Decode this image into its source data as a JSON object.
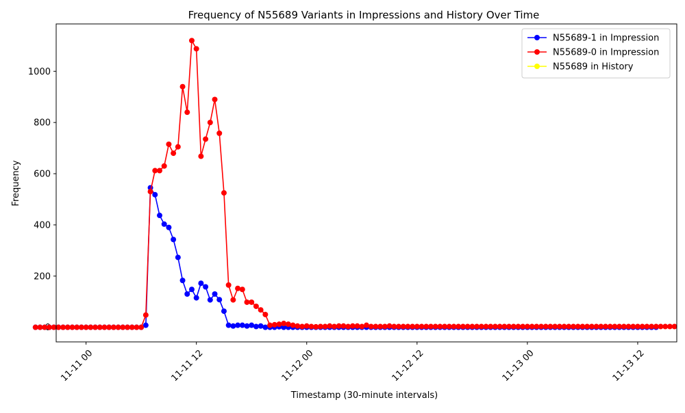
{
  "chart_data": {
    "type": "line",
    "title": "Frequency of N55689 Variants in Impressions and History Over Time",
    "xlabel": "Timestamp (30-minute intervals)",
    "ylabel": "Frequency",
    "x_tick_labels": [
      "11-11 00",
      "11-11 12",
      "11-12 00",
      "11-12 12",
      "11-13 00",
      "11-13 12"
    ],
    "x_tick_hours": [
      0,
      12,
      24,
      36,
      48,
      60
    ],
    "y_ticks": [
      0,
      200,
      400,
      600,
      800,
      1000
    ],
    "xlim_hours": [
      -3.25,
      64.25
    ],
    "ylim": [
      -57,
      1185
    ],
    "grid": false,
    "legend_position": "top-right",
    "x_start_hour": -5.5,
    "x_step_hours": 0.5,
    "series": [
      {
        "name": "N55689-1 in Impression",
        "color": "#0000ff",
        "values": [
          0,
          0,
          0,
          0,
          0,
          0,
          0,
          0,
          0,
          0,
          0,
          0,
          0,
          0,
          0,
          0,
          0,
          0,
          0,
          0,
          0,
          0,
          0,
          0,
          8,
          545,
          518,
          437,
          403,
          390,
          343,
          273,
          183,
          130,
          148,
          115,
          172,
          158,
          107,
          130,
          108,
          63,
          8,
          5,
          8,
          8,
          5,
          8,
          3,
          5,
          0,
          0,
          0,
          2,
          0,
          0,
          0,
          0,
          0,
          0,
          0,
          0,
          0,
          0,
          0,
          0,
          0,
          0,
          0,
          0,
          0,
          0,
          0,
          0,
          0,
          0,
          0,
          0,
          0,
          0,
          0,
          0,
          0,
          0,
          0,
          0,
          0,
          0,
          0,
          0,
          0,
          0,
          0,
          0,
          0,
          0,
          0,
          0,
          0,
          0,
          0,
          0,
          0,
          0,
          0,
          0,
          0,
          0,
          0,
          0,
          0,
          0,
          0,
          0,
          0,
          0,
          0,
          0,
          0,
          0,
          0,
          0,
          0,
          0,
          0,
          0,
          0,
          0,
          0,
          0,
          0,
          0,
          0,
          0,
          0,
          0
        ]
      },
      {
        "name": "N55689-0 in Impression",
        "color": "#ff0000",
        "values": [
          0,
          0,
          0,
          0,
          0,
          0,
          0,
          0,
          0,
          0,
          0,
          0,
          0,
          0,
          0,
          0,
          0,
          0,
          0,
          0,
          0,
          0,
          0,
          0,
          48,
          530,
          612,
          612,
          630,
          715,
          680,
          705,
          940,
          840,
          1120,
          1088,
          668,
          735,
          800,
          890,
          758,
          525,
          165,
          107,
          152,
          148,
          98,
          98,
          82,
          68,
          50,
          8,
          10,
          12,
          15,
          12,
          8,
          5,
          3,
          5,
          3,
          2,
          3,
          3,
          5,
          3,
          5,
          5,
          3,
          5,
          5,
          3,
          8,
          3,
          3,
          3,
          3,
          5,
          3,
          3,
          3,
          3,
          3,
          3,
          3,
          3,
          3,
          3,
          3,
          3,
          3,
          3,
          3,
          3,
          3,
          3,
          3,
          3,
          3,
          3,
          3,
          3,
          3,
          3,
          3,
          3,
          3,
          3,
          3,
          3,
          3,
          3,
          3,
          3,
          3,
          3,
          3,
          3,
          3,
          3,
          3,
          3,
          3,
          3,
          3,
          3,
          3,
          3,
          3,
          3,
          3,
          3,
          3,
          3,
          3,
          3,
          3,
          3,
          3,
          3
        ]
      },
      {
        "name": "N55689 in History",
        "color": "#ffff00",
        "values": []
      }
    ]
  }
}
